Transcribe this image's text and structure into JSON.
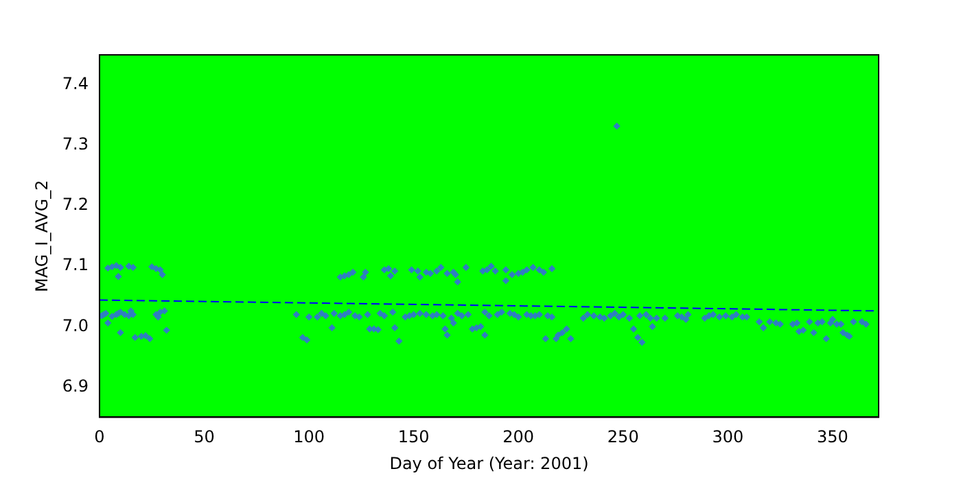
{
  "chart_data": {
    "type": "scatter",
    "xlabel": "Day of Year (Year: 2001)",
    "ylabel": "MAG_I_AVG_2",
    "xlim": [
      0,
      372
    ],
    "ylim": [
      6.85,
      7.45
    ],
    "xticks": [
      0,
      50,
      100,
      150,
      200,
      250,
      300,
      350
    ],
    "yticks": [
      6.9,
      {
        "value": 7.0,
        "label": "7.0"
      },
      7.1,
      7.2,
      7.3,
      7.4
    ],
    "grid": false,
    "legend": false,
    "marker": "diamond",
    "series": [
      {
        "type": "scatter",
        "color": "#2f7fc1",
        "x": [
          4,
          6,
          8,
          9,
          10,
          14,
          16,
          25,
          27,
          29,
          30,
          1,
          2,
          3,
          4,
          6,
          8,
          9,
          10,
          12,
          14,
          15,
          16,
          10,
          17,
          20,
          22,
          24,
          27,
          28,
          29,
          31,
          32,
          94,
          97,
          99,
          100,
          104,
          106,
          108,
          111,
          112,
          115,
          117,
          119,
          122,
          124,
          128,
          129,
          131,
          133,
          134,
          136,
          140,
          141,
          143,
          146,
          148,
          150,
          153,
          156,
          159,
          161,
          164,
          165,
          166,
          168,
          169,
          171,
          173,
          176,
          178,
          180,
          182,
          184,
          184,
          186,
          190,
          192,
          196,
          198,
          200,
          204,
          206,
          208,
          210,
          213,
          214,
          216,
          218,
          219,
          221,
          223,
          225,
          115,
          117,
          119,
          121,
          126,
          127,
          136,
          138,
          139,
          141,
          149,
          152,
          153,
          156,
          158,
          161,
          163,
          166,
          169,
          170,
          171,
          175,
          183,
          185,
          187,
          189,
          194,
          194,
          197,
          200,
          202,
          204,
          207,
          210,
          212,
          216,
          231,
          233,
          236,
          239,
          241,
          244,
          246,
          248,
          250,
          253,
          255,
          257,
          258,
          259,
          261,
          263,
          264,
          266,
          270,
          276,
          278,
          280,
          281,
          289,
          291,
          293,
          296,
          299,
          302,
          304,
          307,
          309,
          315,
          317,
          320,
          323,
          325,
          331,
          333,
          334,
          336,
          339,
          341,
          343,
          345,
          347,
          349,
          350,
          352,
          354,
          355,
          357,
          358,
          360,
          364,
          366,
          247
        ],
        "values": [
          7.097,
          7.099,
          7.101,
          7.083,
          7.098,
          7.1,
          7.098,
          7.099,
          7.096,
          7.094,
          7.086,
          7.018,
          7.02,
          7.022,
          7.006,
          7.017,
          7.02,
          7.022,
          7.024,
          7.02,
          7.018,
          7.026,
          7.02,
          6.99,
          6.982,
          6.984,
          6.985,
          6.98,
          7.02,
          7.016,
          7.024,
          7.026,
          6.994,
          7.02,
          6.982,
          6.978,
          7.016,
          7.016,
          7.022,
          7.018,
          6.998,
          7.022,
          7.018,
          7.02,
          7.024,
          7.018,
          7.016,
          7.02,
          6.996,
          6.996,
          6.995,
          7.022,
          7.018,
          7.024,
          6.998,
          6.976,
          7.016,
          7.018,
          7.02,
          7.022,
          7.02,
          7.018,
          7.02,
          7.018,
          6.996,
          6.986,
          7.014,
          7.006,
          7.022,
          7.018,
          7.02,
          6.996,
          6.998,
          7.0,
          7.024,
          6.986,
          7.018,
          7.02,
          7.024,
          7.022,
          7.02,
          7.016,
          7.02,
          7.018,
          7.018,
          7.02,
          6.98,
          7.018,
          7.016,
          6.98,
          6.986,
          6.99,
          6.996,
          6.98,
          7.082,
          7.084,
          7.086,
          7.09,
          7.082,
          7.09,
          7.094,
          7.096,
          7.084,
          7.092,
          7.094,
          7.092,
          7.082,
          7.09,
          7.088,
          7.092,
          7.098,
          7.088,
          7.09,
          7.086,
          7.074,
          7.098,
          7.092,
          7.094,
          7.1,
          7.092,
          7.094,
          7.076,
          7.086,
          7.088,
          7.09,
          7.094,
          7.098,
          7.094,
          7.09,
          7.096,
          7.014,
          7.02,
          7.018,
          7.016,
          7.014,
          7.018,
          7.022,
          7.016,
          7.02,
          7.014,
          6.996,
          6.982,
          7.018,
          6.974,
          7.02,
          7.014,
          7.0,
          7.014,
          7.014,
          7.018,
          7.016,
          7.012,
          7.02,
          7.014,
          7.018,
          7.02,
          7.016,
          7.018,
          7.016,
          7.02,
          7.016,
          7.016,
          7.008,
          6.998,
          7.008,
          7.006,
          7.004,
          7.004,
          7.006,
          6.992,
          6.994,
          7.008,
          6.99,
          7.006,
          7.008,
          6.98,
          7.006,
          7.012,
          7.004,
          7.004,
          6.99,
          6.986,
          6.984,
          7.008,
          7.008,
          7.004,
          7.332
        ]
      },
      {
        "type": "line",
        "color": "#0000ff",
        "line_style": "dashed",
        "marker": "none",
        "x": [
          0,
          372
        ],
        "values": [
          7.044,
          7.026
        ]
      }
    ]
  }
}
